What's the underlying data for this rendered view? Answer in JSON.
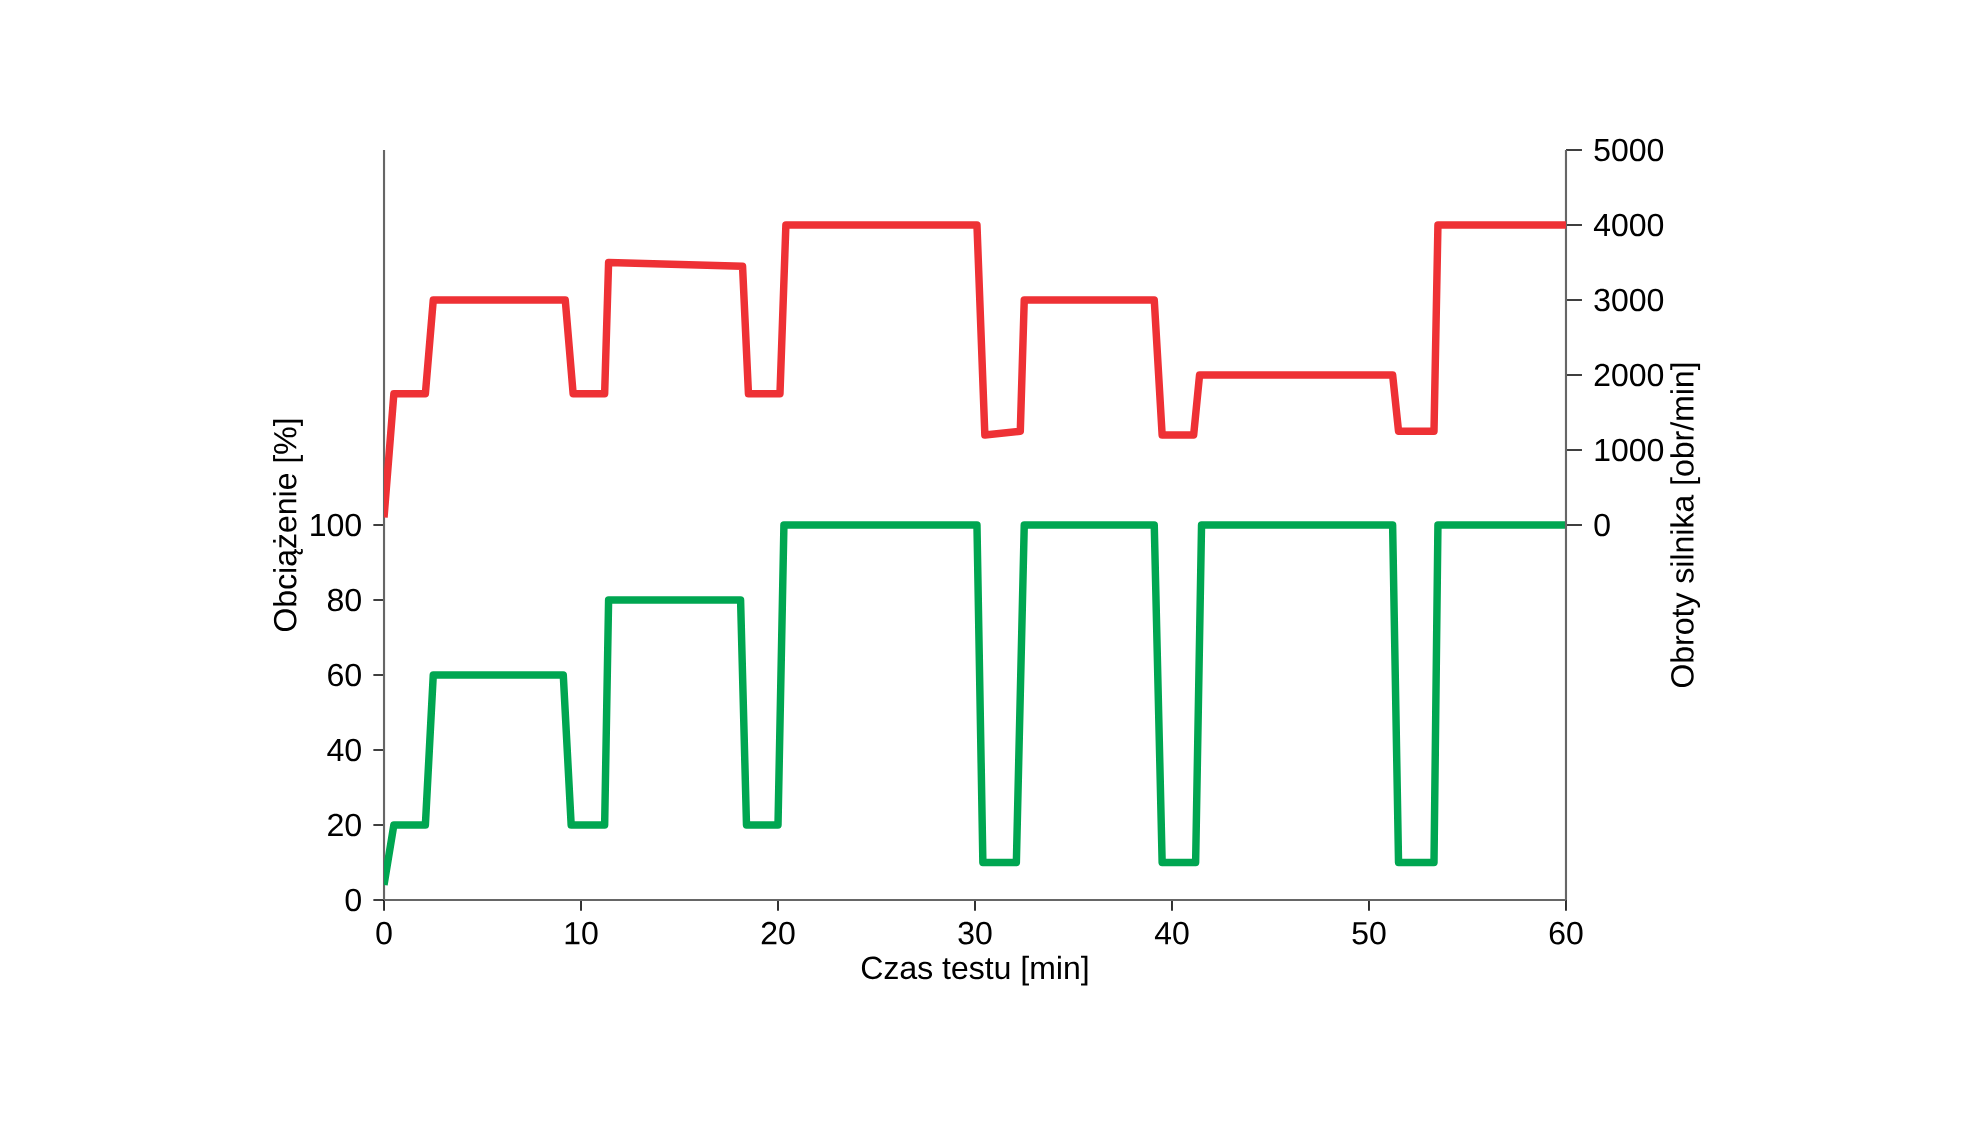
{
  "chart_data": {
    "type": "line",
    "xlabel": "Czas testu [min]",
    "ylabel": "Obciążenie [%]",
    "y2label": "Obroty silnika [obr/min]",
    "xlim": [
      0,
      60
    ],
    "xticks": [
      0,
      10,
      20,
      30,
      40,
      50,
      60
    ],
    "ylim": [
      0,
      200
    ],
    "yticks": [
      0,
      20,
      40,
      60,
      80,
      100
    ],
    "y2lim": [
      -5000,
      5000
    ],
    "y2ticks": [
      0,
      1000,
      2000,
      3000,
      4000,
      5000
    ],
    "grid": false,
    "marker": "none",
    "line_style": "solid",
    "series": [
      {
        "color": "#ee3135",
        "axis": "y2",
        "x": [
          0,
          0.5,
          2.1,
          2.5,
          9.2,
          9.6,
          11.2,
          11.4,
          18.2,
          18.5,
          20.1,
          20.4,
          30.1,
          30.5,
          32.3,
          32.5,
          39.1,
          39.5,
          41.1,
          41.4,
          51.2,
          51.5,
          53.3,
          53.5,
          60
        ],
        "values": [
          100,
          1750,
          1750,
          3000,
          3000,
          1750,
          1750,
          3500,
          3450,
          1750,
          1750,
          4000,
          4000,
          1200,
          1250,
          3000,
          3000,
          1200,
          1200,
          2000,
          2000,
          1250,
          1250,
          4000,
          4000
        ]
      },
      {
        "color": "#00a651",
        "x": [
          0,
          0.5,
          2.1,
          2.5,
          9.1,
          9.5,
          11.2,
          11.4,
          18.1,
          18.4,
          20,
          20.3,
          30.1,
          30.4,
          32.1,
          32.5,
          39.1,
          39.5,
          41.2,
          41.5,
          51.2,
          51.5,
          53.3,
          53.5,
          60
        ],
        "values": [
          4,
          20,
          20,
          60,
          60,
          20,
          20,
          80,
          80,
          20,
          20,
          100,
          100,
          10,
          10,
          100,
          100,
          10,
          10,
          100,
          100,
          10,
          10,
          100,
          100
        ]
      }
    ]
  }
}
